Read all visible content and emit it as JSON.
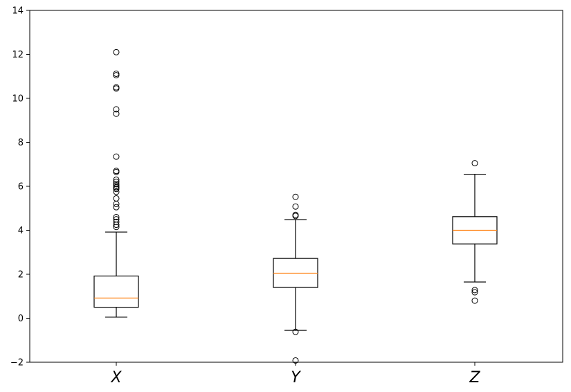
{
  "chart_data": {
    "type": "box",
    "title": "",
    "xlabel": "",
    "ylabel": "",
    "ylim": [
      -2,
      14
    ],
    "yticks": [
      -2,
      0,
      2,
      4,
      6,
      8,
      10,
      12,
      14
    ],
    "grid": false,
    "median_color": "#ff7f0e",
    "box_color": "#000000",
    "series": [
      {
        "name": "X",
        "whisker_low": 0.05,
        "q1": 0.5,
        "median": 0.92,
        "q3": 1.92,
        "whisker_high": 3.92,
        "outliers": [
          4.15,
          4.25,
          4.38,
          4.5,
          4.6,
          5.05,
          5.2,
          5.45,
          5.75,
          5.88,
          5.95,
          6.02,
          6.1,
          6.2,
          6.3,
          6.65,
          6.7,
          7.35,
          9.3,
          9.5,
          10.45,
          10.5,
          11.05,
          11.12,
          12.1
        ]
      },
      {
        "name": "Y",
        "whisker_low": -0.55,
        "q1": 1.4,
        "median": 2.05,
        "q3": 2.72,
        "whisker_high": 4.48,
        "outliers": [
          -0.62,
          -1.92,
          4.65,
          4.7,
          5.08,
          5.52
        ]
      },
      {
        "name": "Z",
        "whisker_low": 1.65,
        "q1": 3.38,
        "median": 4.0,
        "q3": 4.62,
        "whisker_high": 6.55,
        "outliers": [
          0.8,
          1.18,
          1.28,
          7.05
        ]
      }
    ]
  }
}
